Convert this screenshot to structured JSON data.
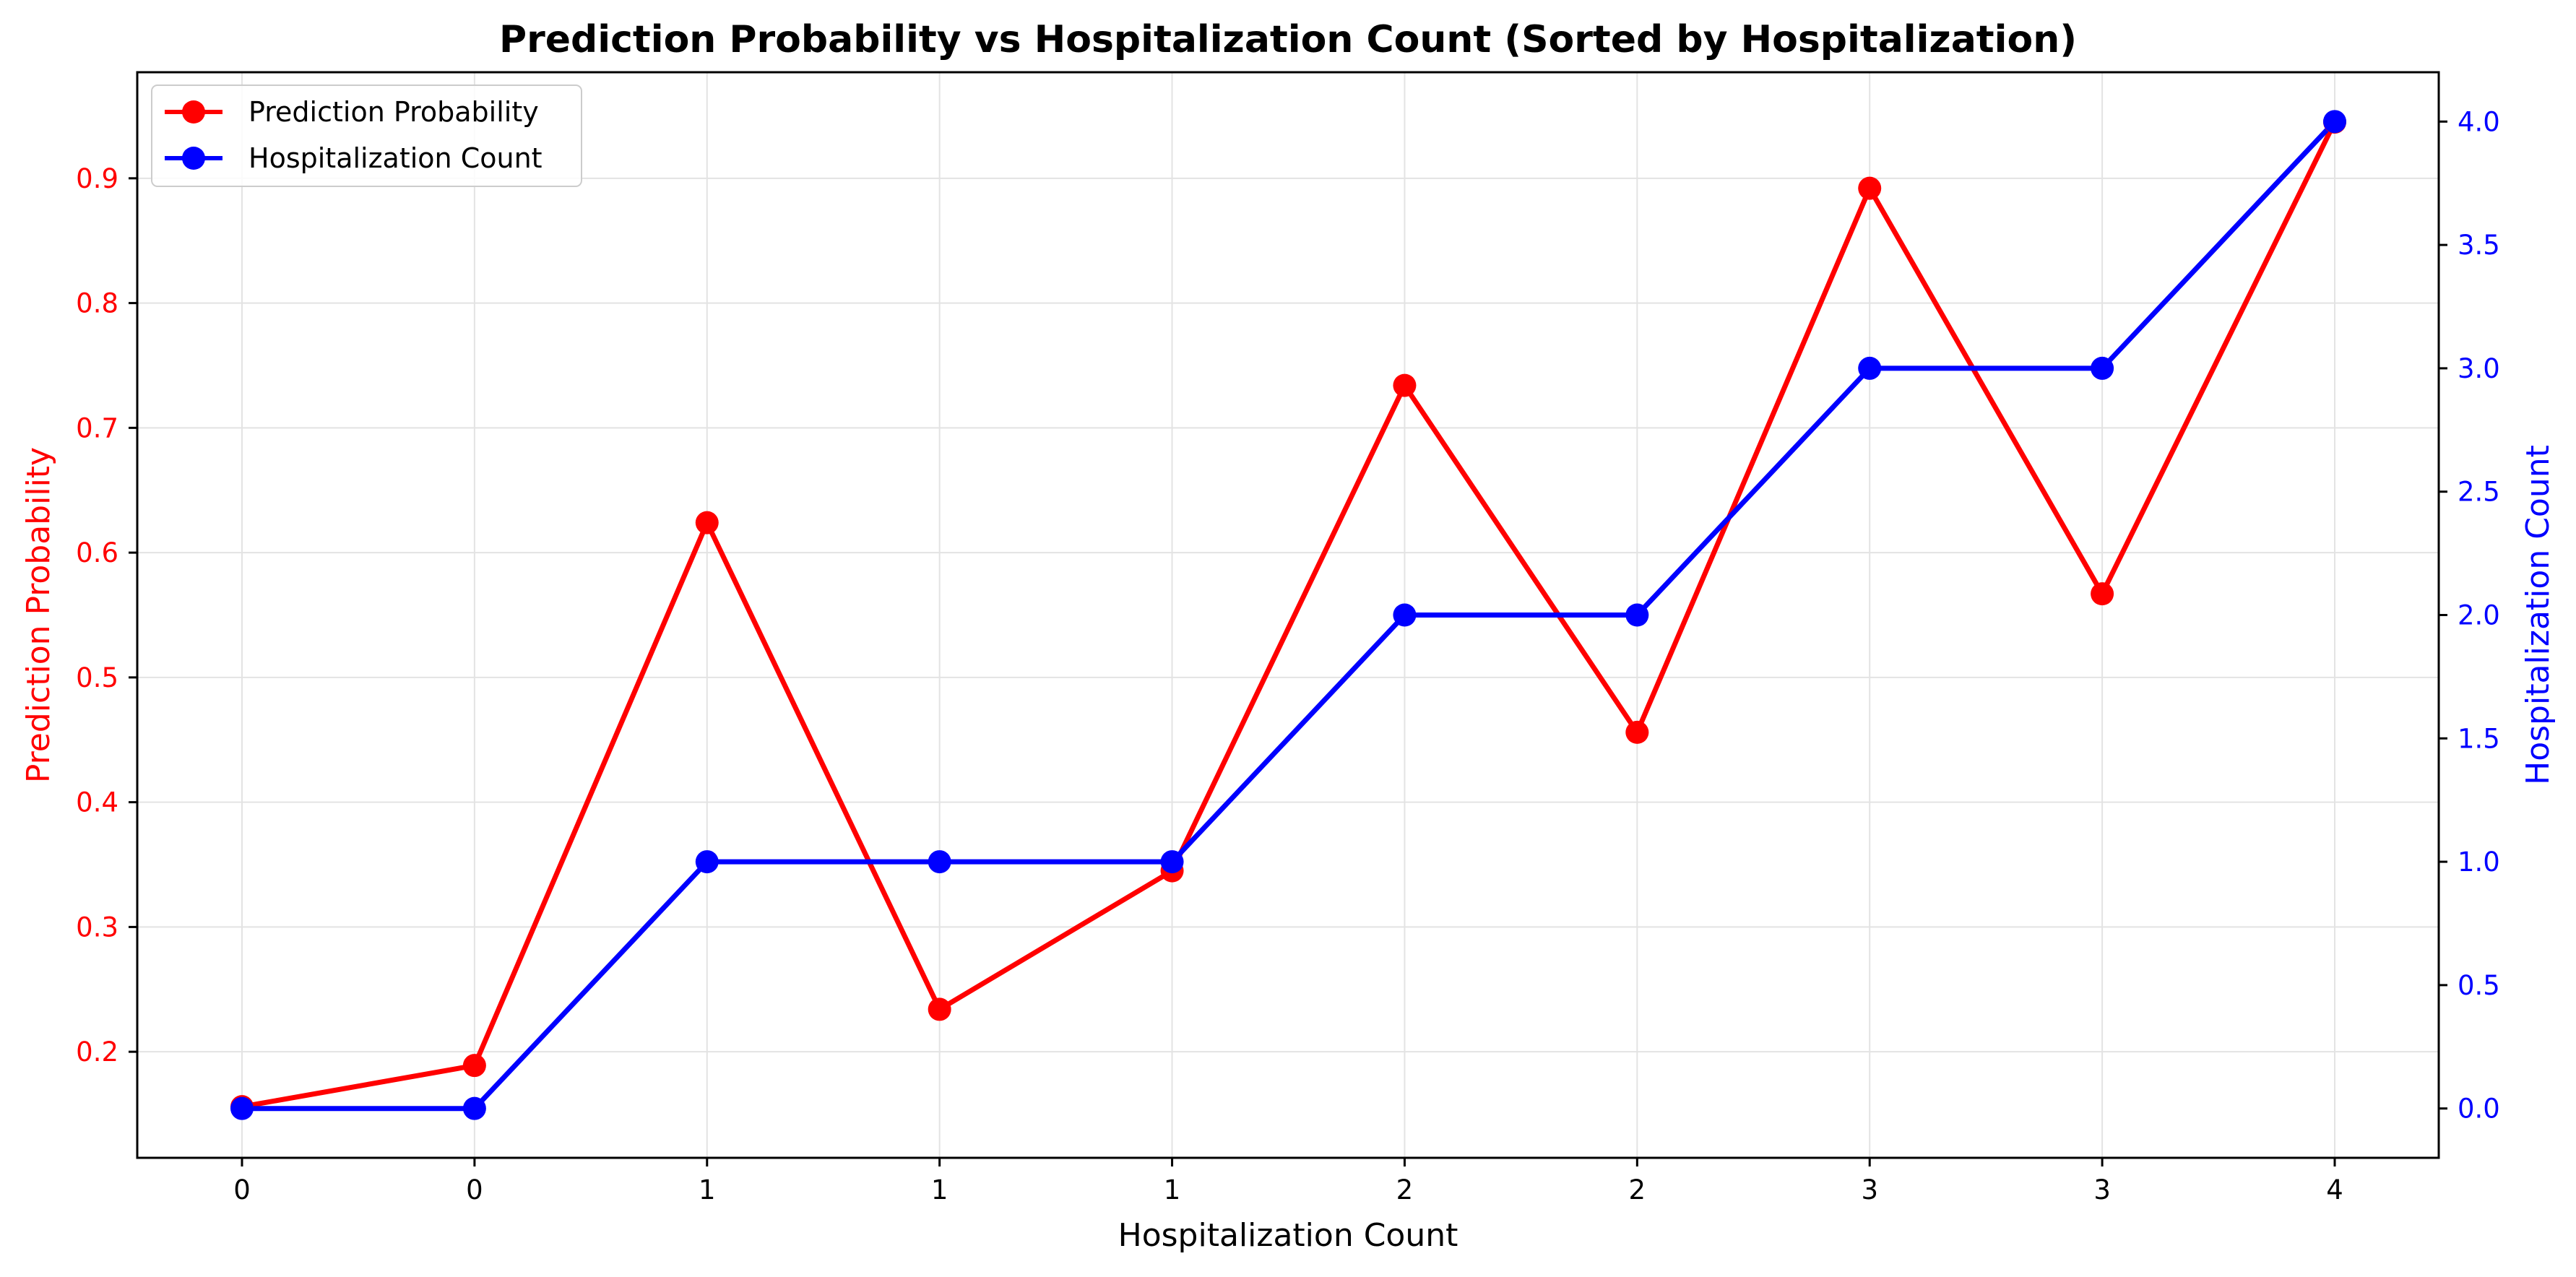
{
  "chart_data": {
    "type": "line",
    "title": "Prediction Probability vs Hospitalization Count (Sorted by Hospitalization)",
    "xlabel": "Hospitalization Count",
    "ylabel_left": "Prediction Probability",
    "ylabel_right": "Hospitalization Count",
    "categories": [
      "0",
      "0",
      "1",
      "1",
      "1",
      "2",
      "2",
      "3",
      "3",
      "4"
    ],
    "ylim_left": [
      0.115,
      0.985
    ],
    "ylim_right": [
      -0.2,
      4.2
    ],
    "yticks_left": [
      0.2,
      0.3,
      0.4,
      0.5,
      0.6,
      0.7,
      0.8,
      0.9
    ],
    "yticks_right": [
      0.0,
      0.5,
      1.0,
      1.5,
      2.0,
      2.5,
      3.0,
      3.5,
      4.0
    ],
    "ytick_labels_left": [
      "0.2",
      "0.3",
      "0.4",
      "0.5",
      "0.6",
      "0.7",
      "0.8",
      "0.9"
    ],
    "ytick_labels_right": [
      "0.0",
      "0.5",
      "1.0",
      "1.5",
      "2.0",
      "2.5",
      "3.0",
      "3.5",
      "4.0"
    ],
    "grid": true,
    "legend_position": "top-left",
    "series": [
      {
        "name": "Prediction Probability",
        "axis": "left",
        "color": "#ff0000",
        "values": [
          0.156,
          0.189,
          0.624,
          0.234,
          0.345,
          0.734,
          0.456,
          0.892,
          0.567,
          0.945
        ]
      },
      {
        "name": "Hospitalization Count",
        "axis": "right",
        "color": "#0000ff",
        "values": [
          0,
          0,
          1,
          1,
          1,
          2,
          2,
          3,
          3,
          4
        ]
      }
    ]
  }
}
